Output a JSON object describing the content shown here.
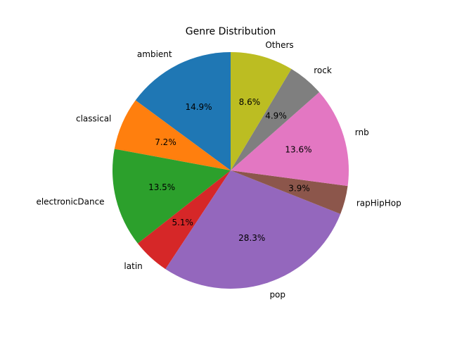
{
  "chart_data": {
    "type": "pie",
    "title": "Genre Distribution",
    "start_angle_deg": 90,
    "direction": "counterclockwise",
    "slices": [
      {
        "label": "ambient",
        "value": 14.9,
        "pct_label": "14.9%",
        "color": "#1f77b4"
      },
      {
        "label": "classical",
        "value": 7.2,
        "pct_label": "7.2%",
        "color": "#ff7f0e"
      },
      {
        "label": "electronicDance",
        "value": 13.5,
        "pct_label": "13.5%",
        "color": "#2ca02c"
      },
      {
        "label": "latin",
        "value": 5.1,
        "pct_label": "5.1%",
        "color": "#d62728"
      },
      {
        "label": "pop",
        "value": 28.3,
        "pct_label": "28.3%",
        "color": "#9467bd"
      },
      {
        "label": "rapHipHop",
        "value": 3.9,
        "pct_label": "3.9%",
        "color": "#8c564b"
      },
      {
        "label": "rnb",
        "value": 13.6,
        "pct_label": "13.6%",
        "color": "#e377c2"
      },
      {
        "label": "rock",
        "value": 4.9,
        "pct_label": "4.9%",
        "color": "#7f7f7f"
      },
      {
        "label": "Others",
        "value": 8.6,
        "pct_label": "8.6%",
        "color": "#bcbd22"
      }
    ]
  }
}
